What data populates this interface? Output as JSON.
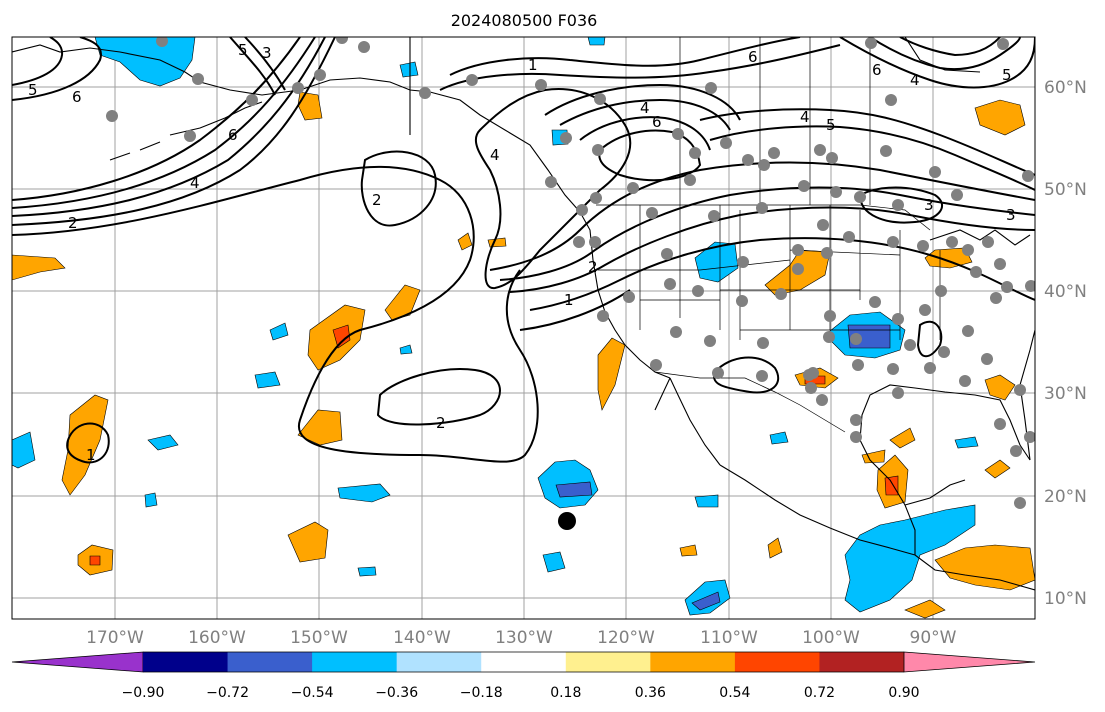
{
  "title": "2024080500 F036",
  "lat_labels": [
    "60°N",
    "50°N",
    "40°N",
    "30°N",
    "20°N",
    "10°N"
  ],
  "lon_labels": [
    "170°W",
    "160°W",
    "150°W",
    "140°W",
    "130°W",
    "120°W",
    "110°W",
    "100°W",
    "90°W"
  ],
  "colorbar": {
    "colors": [
      "#9932cc",
      "#00008b",
      "#3a5fcd",
      "#00bfff",
      "#b0e2ff",
      "#ffffff",
      "#fff08f",
      "#ffa500",
      "#ff4500",
      "#b22222",
      "#ff88aa"
    ],
    "tick_labels": [
      "−0.90",
      "−0.72",
      "−0.54",
      "−0.36",
      "−0.18",
      "0.18",
      "0.36",
      "0.54",
      "0.72",
      "0.90"
    ]
  },
  "contour_labels": [
    "1",
    "2",
    "3",
    "4",
    "5",
    "6"
  ],
  "contour_color": "#000000",
  "station_color": "#808080",
  "marker_color": "#000000"
}
